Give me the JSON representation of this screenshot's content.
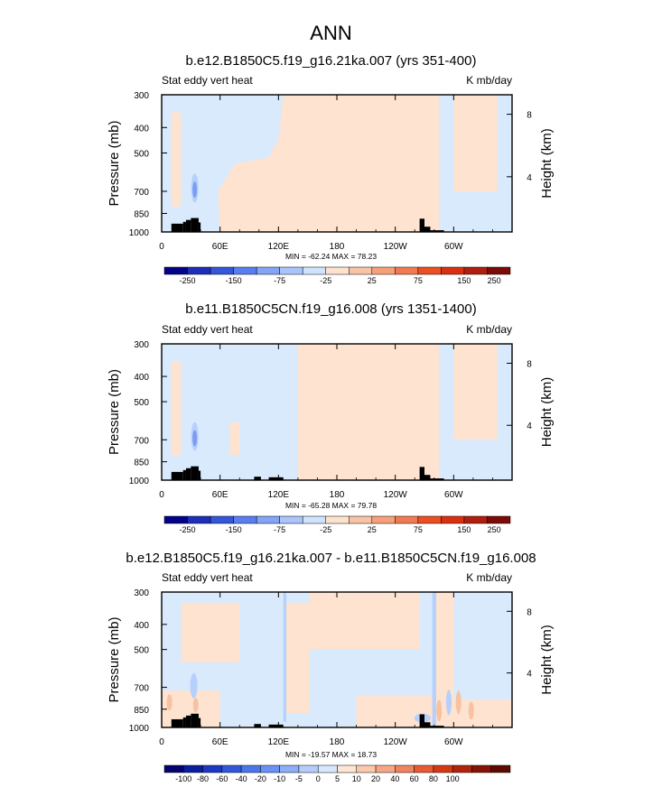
{
  "figure_title": "ANN",
  "chart_data": [
    {
      "type": "heatmap",
      "title": "b.e12.B1850C5.f19_g16.21ka.007 (yrs 351-400)",
      "left_label": "Stat eddy vert heat",
      "right_label": "K mb/day",
      "ylabel": "Pressure (mb)",
      "ylabel_right": "Height (km)",
      "x_ticks": [
        "0",
        "60E",
        "120E",
        "180",
        "120W",
        "60W"
      ],
      "y_ticks": [
        "300",
        "400",
        "500",
        "700",
        "850",
        "1000"
      ],
      "right_ticks": [
        "8",
        "4"
      ],
      "min_max_text": "MIN = -62.24  MAX = 78.23",
      "colorbar_labels": [
        "-250",
        "-150",
        "-75",
        "-25",
        "25",
        "75",
        "150",
        "250"
      ],
      "field_regions": {
        "dominant": "weak positive (0 to 25) over 150E-60W in the upper/mid troposphere; weak negative (-25 to 0) over 0-150E and near 60W",
        "min_center": "about -62 near 35E, 700 mb",
        "max_center": "about 78 near 30-40E lower troposphere"
      }
    },
    {
      "type": "heatmap",
      "title": "b.e11.B1850C5CN.f19_g16.008 (yrs 1351-1400)",
      "left_label": "Stat eddy vert heat",
      "right_label": "K mb/day",
      "ylabel": "Pressure (mb)",
      "ylabel_right": "Height (km)",
      "x_ticks": [
        "0",
        "60E",
        "120E",
        "180",
        "120W",
        "60W"
      ],
      "y_ticks": [
        "300",
        "400",
        "500",
        "700",
        "850",
        "1000"
      ],
      "right_ticks": [
        "8",
        "4"
      ],
      "min_max_text": "MIN = -65.28  MAX = 79.78",
      "colorbar_labels": [
        "-250",
        "-150",
        "-75",
        "-25",
        "25",
        "75",
        "150",
        "250"
      ],
      "field_regions": {
        "dominant": "weak positive (0 to 25) over 140E-60W; weak negative (-25 to 0) over 0-130E and near 60W",
        "min_center": "about -65 near 35E, 700 mb",
        "max_center": "about 80 near 30-40E lower troposphere"
      }
    },
    {
      "type": "heatmap",
      "title": "b.e12.B1850C5.f19_g16.21ka.007 - b.e11.B1850C5CN.f19_g16.008",
      "left_label": "Stat eddy vert heat",
      "right_label": "K mb/day",
      "ylabel": "Pressure (mb)",
      "ylabel_right": "Height (km)",
      "x_ticks": [
        "0",
        "60E",
        "120E",
        "180",
        "120W",
        "60W"
      ],
      "y_ticks": [
        "300",
        "400",
        "500",
        "700",
        "850",
        "1000"
      ],
      "right_ticks": [
        "8",
        "4"
      ],
      "min_max_text": "MIN = -19.57  MAX = 18.73",
      "colorbar_labels": [
        "-100",
        "-80",
        "-60",
        "-40",
        "-20",
        "-10",
        "-5",
        "0",
        "5",
        "10",
        "20",
        "40",
        "60",
        "80",
        "100"
      ],
      "field_regions": {
        "dominant": "mixed weak difference (-5 to 5) with negative patches near 35E, 120E and 70W",
        "min_center": "about -20 near 70W lower troposphere",
        "max_center": "about 19 near 60W lower troposphere"
      }
    }
  ],
  "colorbar_colors_main": [
    "#030387",
    "#1d2eb8",
    "#3456d9",
    "#5a7ef0",
    "#83a4f7",
    "#a9c5fb",
    "#cfe3fe",
    "#fde2cf",
    "#f9c4a6",
    "#f6a07b",
    "#f27a52",
    "#ec4f22",
    "#d93010",
    "#b01e0e",
    "#7a0b06"
  ],
  "colorbar_colors_diff": [
    "#03046f",
    "#0a1ea0",
    "#1d38c4",
    "#3158d9",
    "#4a76eb",
    "#6a92f4",
    "#8eaefa",
    "#b5cdfd",
    "#d7e8fe",
    "#fee5d4",
    "#fbc9ad",
    "#f6a785",
    "#f1835d",
    "#e85b34",
    "#d63912",
    "#b1240b",
    "#871306",
    "#5c0a03"
  ],
  "field_colors": {
    "neg_weak": "#d9eafd",
    "neg_mod": "#b5d0fb",
    "neg_strong": "#7b9cf2",
    "pos_weak": "#fde3d0",
    "pos_mod": "#f8c1a2",
    "terrain": "#000000"
  }
}
